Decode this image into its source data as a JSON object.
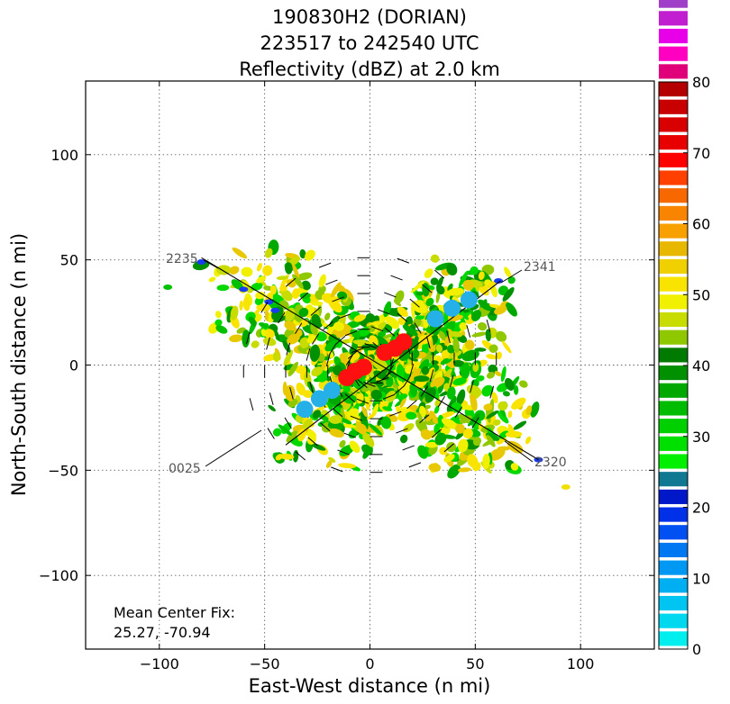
{
  "chart_data": {
    "type": "radar-reflectivity-plan-view",
    "title_lines": [
      "190830H2 (DORIAN)",
      "223517 to 242540 UTC",
      "Reflectivity (dBZ) at 2.0 km"
    ],
    "xlabel": "East-West distance (n mi)",
    "ylabel": "North-South distance (n mi)",
    "xlim": [
      -135,
      135
    ],
    "ylim": [
      -135,
      135
    ],
    "x_ticks": [
      -100,
      -50,
      0,
      50,
      100
    ],
    "y_ticks": [
      -100,
      -50,
      0,
      50,
      100
    ],
    "x_tick_labels": [
      "−100",
      "−50",
      "0",
      "50",
      "100"
    ],
    "y_tick_labels": [
      "−100",
      "−50",
      "0",
      "50",
      "100"
    ],
    "grid": true,
    "colorbar": {
      "min": 0,
      "max": 80,
      "step": 2.5,
      "ticks": [
        0,
        10,
        20,
        30,
        40,
        50,
        60,
        70,
        80
      ],
      "colors": [
        "#00eeee",
        "#00d8f0",
        "#00c4f2",
        "#00aef2",
        "#0098f2",
        "#0078f2",
        "#0050f2",
        "#0030e8",
        "#0018c8",
        "#107890",
        "#00f000",
        "#00e000",
        "#00d000",
        "#00bc00",
        "#00a800",
        "#009000",
        "#007a00",
        "#90c800",
        "#c8dc00",
        "#f0f000",
        "#f8e400",
        "#f0d000",
        "#e8b800",
        "#f8a000",
        "#f88400",
        "#f86800",
        "#ff4000",
        "#ff0000",
        "#e80000",
        "#d80000",
        "#c80000",
        "#b40000",
        "#e0007a",
        "#ff00c0",
        "#e800e8",
        "#c020d0",
        "#a040c8",
        "#7a3aa0",
        "#503060",
        "#000000"
      ]
    },
    "flight_track": {
      "leg1": {
        "start": [
          -80,
          51
        ],
        "end": [
          80,
          -45
        ],
        "start_label": "2235",
        "end_label": "2320"
      },
      "leg2": {
        "start": [
          -40,
          -38
        ],
        "end": [
          62,
          40
        ],
        "start_label": "0025",
        "end_label": "2341"
      }
    },
    "center_fix_points": {
      "light_blue": [
        [
          -31,
          -21
        ],
        [
          -24,
          -16
        ],
        [
          -18,
          -12
        ],
        [
          31,
          22
        ],
        [
          39,
          27
        ],
        [
          47,
          31
        ]
      ],
      "red": [
        [
          -11,
          -6
        ],
        [
          -7,
          -3
        ],
        [
          -3,
          -1
        ],
        [
          7,
          6
        ],
        [
          12,
          8
        ],
        [
          16,
          11
        ]
      ]
    },
    "annotation": {
      "line1": "Mean Center Fix:",
      "line2": "25.27, -70.94"
    }
  }
}
